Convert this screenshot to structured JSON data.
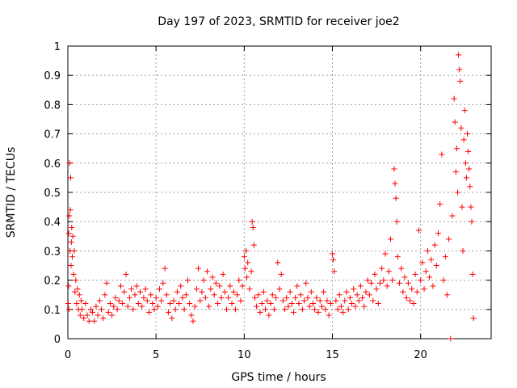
{
  "chart_data": {
    "type": "scatter",
    "title": "Day 197 of 2023, SRMTID for receiver joe2",
    "xlabel": "GPS time / hours",
    "ylabel": "SRMTID / TECUs",
    "xlim": [
      0,
      24
    ],
    "ylim": [
      0,
      1
    ],
    "x_ticks": [
      0,
      5,
      10,
      15,
      20
    ],
    "x_tick_labels": [
      "0",
      "5",
      "10",
      "15",
      "20"
    ],
    "y_ticks": [
      0,
      0.1,
      0.2,
      0.3,
      0.4,
      0.5,
      0.6,
      0.7,
      0.8,
      0.9,
      1
    ],
    "y_tick_labels": [
      "0",
      "0.1",
      "0.2",
      "0.3",
      "0.4",
      "0.5",
      "0.6",
      "0.7",
      "0.8",
      "0.9",
      "1"
    ],
    "grid": true,
    "marker": "+",
    "series": [
      {
        "name": "SRMTID",
        "color": "#ff0000",
        "points": [
          [
            0.02,
            0.12
          ],
          [
            0.04,
            0.18
          ],
          [
            0.05,
            0.36
          ],
          [
            0.06,
            0.1
          ],
          [
            0.08,
            0.42
          ],
          [
            0.1,
            0.6
          ],
          [
            0.12,
            0.3
          ],
          [
            0.14,
            0.44
          ],
          [
            0.16,
            0.55
          ],
          [
            0.18,
            0.25
          ],
          [
            0.2,
            0.33
          ],
          [
            0.22,
            0.38
          ],
          [
            0.25,
            0.28
          ],
          [
            0.28,
            0.35
          ],
          [
            0.32,
            0.22
          ],
          [
            0.36,
            0.3
          ],
          [
            0.4,
            0.16
          ],
          [
            0.45,
            0.2
          ],
          [
            0.5,
            0.12
          ],
          [
            0.55,
            0.17
          ],
          [
            0.6,
            0.1
          ],
          [
            0.65,
            0.15
          ],
          [
            0.7,
            0.08
          ],
          [
            0.75,
            0.13
          ],
          [
            0.8,
            0.1
          ],
          [
            0.9,
            0.07
          ],
          [
            1.0,
            0.12
          ],
          [
            1.1,
            0.08
          ],
          [
            1.2,
            0.06
          ],
          [
            1.3,
            0.1
          ],
          [
            1.4,
            0.09
          ],
          [
            1.5,
            0.06
          ],
          [
            1.6,
            0.11
          ],
          [
            1.7,
            0.08
          ],
          [
            1.8,
            0.13
          ],
          [
            1.9,
            0.1
          ],
          [
            2.0,
            0.07
          ],
          [
            2.1,
            0.15
          ],
          [
            2.2,
            0.19
          ],
          [
            2.3,
            0.09
          ],
          [
            2.4,
            0.12
          ],
          [
            2.5,
            0.08
          ],
          [
            2.6,
            0.11
          ],
          [
            2.7,
            0.14
          ],
          [
            2.8,
            0.1
          ],
          [
            2.9,
            0.13
          ],
          [
            3.0,
            0.18
          ],
          [
            3.1,
            0.12
          ],
          [
            3.2,
            0.16
          ],
          [
            3.3,
            0.22
          ],
          [
            3.4,
            0.11
          ],
          [
            3.5,
            0.14
          ],
          [
            3.6,
            0.17
          ],
          [
            3.7,
            0.1
          ],
          [
            3.8,
            0.15
          ],
          [
            3.9,
            0.18
          ],
          [
            4.0,
            0.12
          ],
          [
            4.1,
            0.16
          ],
          [
            4.2,
            0.11
          ],
          [
            4.3,
            0.14
          ],
          [
            4.4,
            0.17
          ],
          [
            4.5,
            0.13
          ],
          [
            4.6,
            0.09
          ],
          [
            4.7,
            0.15
          ],
          [
            4.8,
            0.12
          ],
          [
            4.9,
            0.1
          ],
          [
            5.0,
            0.14
          ],
          [
            5.1,
            0.11
          ],
          [
            5.2,
            0.17
          ],
          [
            5.3,
            0.13
          ],
          [
            5.4,
            0.19
          ],
          [
            5.5,
            0.24
          ],
          [
            5.6,
            0.15
          ],
          [
            5.7,
            0.09
          ],
          [
            5.8,
            0.12
          ],
          [
            5.9,
            0.07
          ],
          [
            6.0,
            0.13
          ],
          [
            6.1,
            0.1
          ],
          [
            6.2,
            0.16
          ],
          [
            6.3,
            0.12
          ],
          [
            6.4,
            0.18
          ],
          [
            6.5,
            0.14
          ],
          [
            6.6,
            0.1
          ],
          [
            6.7,
            0.15
          ],
          [
            6.8,
            0.2
          ],
          [
            6.9,
            0.12
          ],
          [
            7.0,
            0.08
          ],
          [
            7.1,
            0.06
          ],
          [
            7.2,
            0.11
          ],
          [
            7.3,
            0.17
          ],
          [
            7.4,
            0.24
          ],
          [
            7.5,
            0.13
          ],
          [
            7.6,
            0.16
          ],
          [
            7.7,
            0.2
          ],
          [
            7.8,
            0.14
          ],
          [
            7.9,
            0.23
          ],
          [
            8.0,
            0.11
          ],
          [
            8.1,
            0.17
          ],
          [
            8.2,
            0.21
          ],
          [
            8.3,
            0.15
          ],
          [
            8.4,
            0.19
          ],
          [
            8.5,
            0.12
          ],
          [
            8.6,
            0.18
          ],
          [
            8.7,
            0.14
          ],
          [
            8.8,
            0.22
          ],
          [
            8.9,
            0.16
          ],
          [
            9.0,
            0.1
          ],
          [
            9.1,
            0.14
          ],
          [
            9.2,
            0.18
          ],
          [
            9.3,
            0.12
          ],
          [
            9.4,
            0.16
          ],
          [
            9.5,
            0.1
          ],
          [
            9.6,
            0.15
          ],
          [
            9.7,
            0.2
          ],
          [
            9.8,
            0.13
          ],
          [
            9.9,
            0.18
          ],
          [
            10.0,
            0.28
          ],
          [
            10.05,
            0.24
          ],
          [
            10.1,
            0.3
          ],
          [
            10.15,
            0.21
          ],
          [
            10.2,
            0.26
          ],
          [
            10.3,
            0.17
          ],
          [
            10.4,
            0.23
          ],
          [
            10.45,
            0.4
          ],
          [
            10.5,
            0.38
          ],
          [
            10.55,
            0.32
          ],
          [
            10.6,
            0.14
          ],
          [
            10.7,
            0.11
          ],
          [
            10.8,
            0.15
          ],
          [
            10.9,
            0.09
          ],
          [
            11.0,
            0.12
          ],
          [
            11.1,
            0.16
          ],
          [
            11.2,
            0.1
          ],
          [
            11.3,
            0.13
          ],
          [
            11.4,
            0.08
          ],
          [
            11.5,
            0.12
          ],
          [
            11.6,
            0.15
          ],
          [
            11.7,
            0.1
          ],
          [
            11.8,
            0.14
          ],
          [
            11.9,
            0.26
          ],
          [
            12.0,
            0.17
          ],
          [
            12.1,
            0.22
          ],
          [
            12.2,
            0.13
          ],
          [
            12.3,
            0.1
          ],
          [
            12.4,
            0.14
          ],
          [
            12.5,
            0.11
          ],
          [
            12.6,
            0.16
          ],
          [
            12.7,
            0.12
          ],
          [
            12.8,
            0.09
          ],
          [
            12.9,
            0.14
          ],
          [
            13.0,
            0.18
          ],
          [
            13.1,
            0.12
          ],
          [
            13.2,
            0.15
          ],
          [
            13.3,
            0.1
          ],
          [
            13.4,
            0.13
          ],
          [
            13.5,
            0.19
          ],
          [
            13.6,
            0.14
          ],
          [
            13.7,
            0.11
          ],
          [
            13.8,
            0.16
          ],
          [
            13.9,
            0.12
          ],
          [
            14.0,
            0.1
          ],
          [
            14.1,
            0.14
          ],
          [
            14.2,
            0.09
          ],
          [
            14.3,
            0.13
          ],
          [
            14.4,
            0.11
          ],
          [
            14.5,
            0.16
          ],
          [
            14.6,
            0.1
          ],
          [
            14.7,
            0.13
          ],
          [
            14.8,
            0.08
          ],
          [
            14.9,
            0.12
          ],
          [
            15.0,
            0.29
          ],
          [
            15.05,
            0.27
          ],
          [
            15.1,
            0.23
          ],
          [
            15.2,
            0.13
          ],
          [
            15.3,
            0.1
          ],
          [
            15.4,
            0.15
          ],
          [
            15.5,
            0.11
          ],
          [
            15.6,
            0.09
          ],
          [
            15.7,
            0.13
          ],
          [
            15.8,
            0.16
          ],
          [
            15.9,
            0.1
          ],
          [
            16.0,
            0.14
          ],
          [
            16.1,
            0.12
          ],
          [
            16.2,
            0.17
          ],
          [
            16.3,
            0.11
          ],
          [
            16.4,
            0.15
          ],
          [
            16.5,
            0.13
          ],
          [
            16.6,
            0.18
          ],
          [
            16.7,
            0.14
          ],
          [
            16.8,
            0.11
          ],
          [
            16.9,
            0.16
          ],
          [
            17.0,
            0.2
          ],
          [
            17.1,
            0.15
          ],
          [
            17.2,
            0.19
          ],
          [
            17.3,
            0.13
          ],
          [
            17.4,
            0.22
          ],
          [
            17.5,
            0.17
          ],
          [
            17.6,
            0.12
          ],
          [
            17.7,
            0.19
          ],
          [
            17.8,
            0.24
          ],
          [
            17.9,
            0.2
          ],
          [
            18.0,
            0.29
          ],
          [
            18.1,
            0.18
          ],
          [
            18.2,
            0.23
          ],
          [
            18.3,
            0.34
          ],
          [
            18.4,
            0.2
          ],
          [
            18.5,
            0.58
          ],
          [
            18.55,
            0.53
          ],
          [
            18.6,
            0.48
          ],
          [
            18.65,
            0.4
          ],
          [
            18.7,
            0.28
          ],
          [
            18.8,
            0.19
          ],
          [
            18.9,
            0.24
          ],
          [
            19.0,
            0.16
          ],
          [
            19.1,
            0.21
          ],
          [
            19.2,
            0.14
          ],
          [
            19.3,
            0.19
          ],
          [
            19.4,
            0.13
          ],
          [
            19.5,
            0.17
          ],
          [
            19.6,
            0.12
          ],
          [
            19.7,
            0.22
          ],
          [
            19.8,
            0.16
          ],
          [
            19.9,
            0.37
          ],
          [
            20.0,
            0.2
          ],
          [
            20.1,
            0.26
          ],
          [
            20.2,
            0.17
          ],
          [
            20.3,
            0.23
          ],
          [
            20.4,
            0.3
          ],
          [
            20.5,
            0.21
          ],
          [
            20.6,
            0.27
          ],
          [
            20.7,
            0.18
          ],
          [
            20.8,
            0.32
          ],
          [
            20.9,
            0.25
          ],
          [
            21.0,
            0.36
          ],
          [
            21.1,
            0.46
          ],
          [
            21.2,
            0.63
          ],
          [
            21.3,
            0.2
          ],
          [
            21.4,
            0.28
          ],
          [
            21.5,
            0.15
          ],
          [
            21.6,
            0.34
          ],
          [
            21.7,
            0.0
          ],
          [
            21.8,
            0.42
          ],
          [
            21.9,
            0.82
          ],
          [
            21.95,
            0.74
          ],
          [
            22.0,
            0.57
          ],
          [
            22.05,
            0.65
          ],
          [
            22.1,
            0.5
          ],
          [
            22.15,
            0.97
          ],
          [
            22.2,
            0.92
          ],
          [
            22.25,
            0.88
          ],
          [
            22.3,
            0.72
          ],
          [
            22.35,
            0.45
          ],
          [
            22.4,
            0.3
          ],
          [
            22.45,
            0.68
          ],
          [
            22.5,
            0.78
          ],
          [
            22.55,
            0.6
          ],
          [
            22.6,
            0.55
          ],
          [
            22.65,
            0.7
          ],
          [
            22.7,
            0.64
          ],
          [
            22.75,
            0.58
          ],
          [
            22.8,
            0.52
          ],
          [
            22.85,
            0.45
          ],
          [
            22.9,
            0.4
          ],
          [
            22.95,
            0.22
          ],
          [
            23.0,
            0.07
          ]
        ]
      }
    ]
  }
}
